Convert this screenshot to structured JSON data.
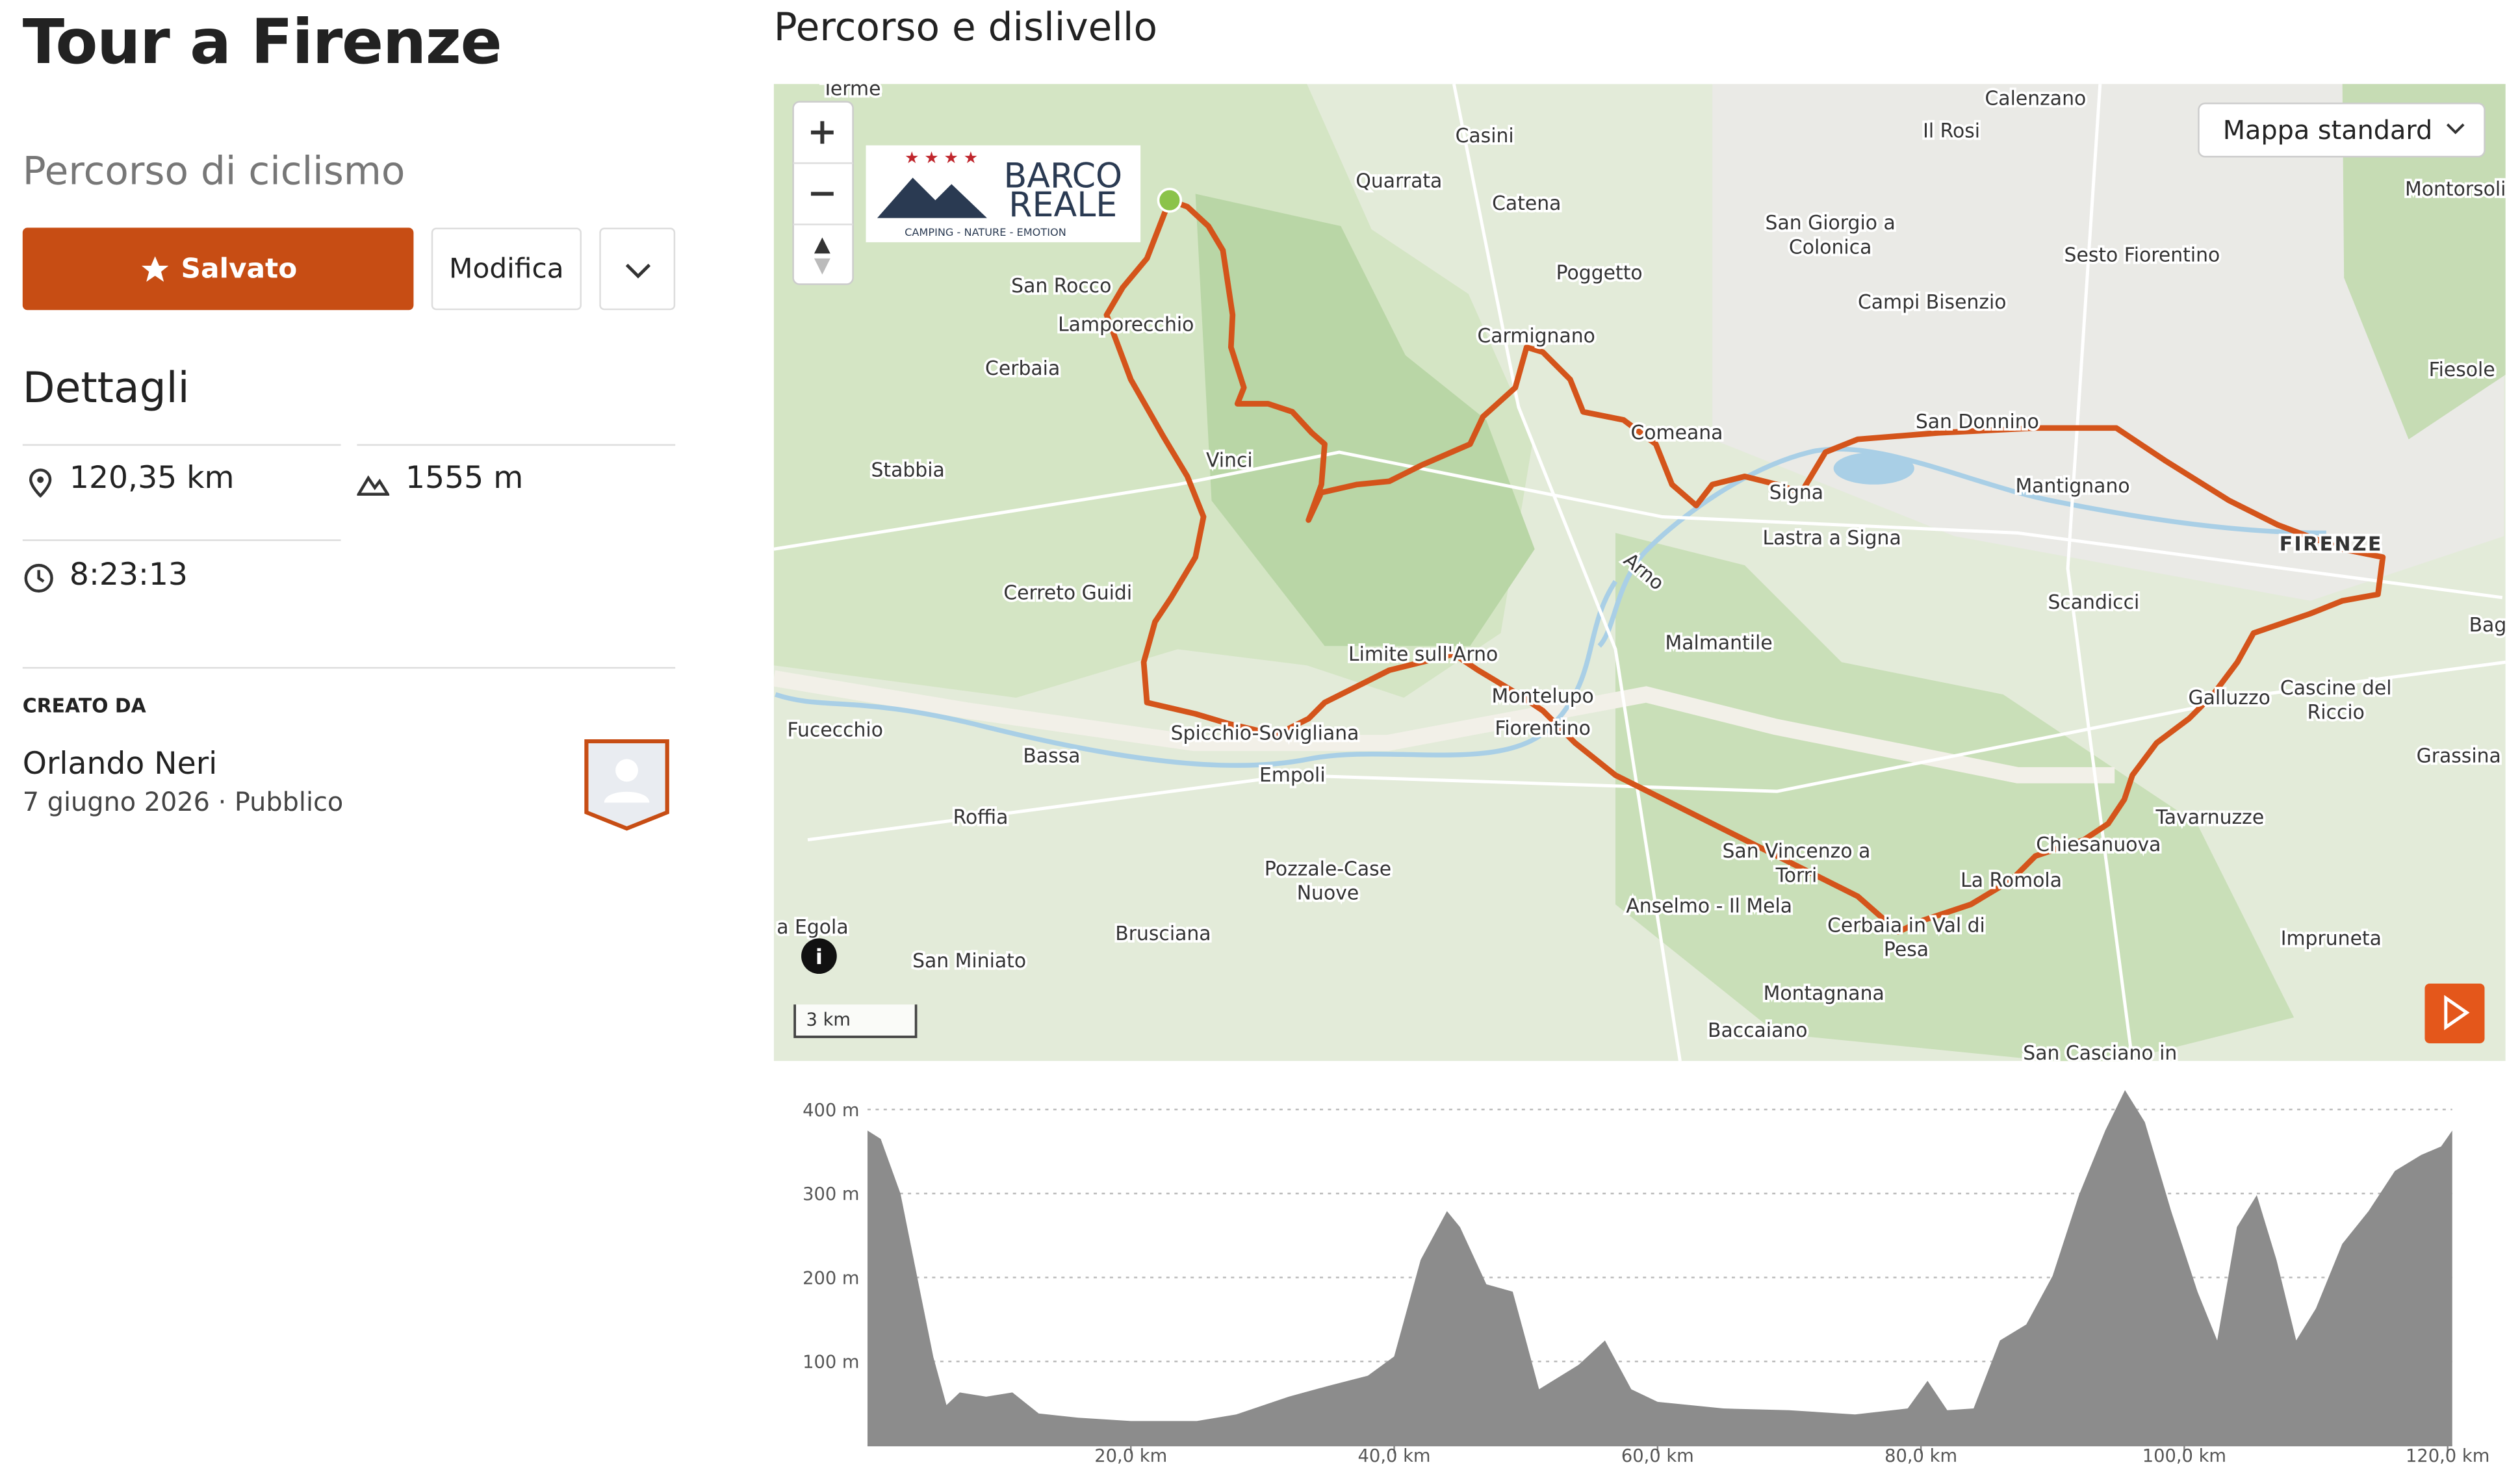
{
  "header": {
    "title": "Tour a Firenze",
    "subtitle": "Percorso di ciclismo"
  },
  "buttons": {
    "saved": "Salvato",
    "edit": "Modifica"
  },
  "details": {
    "heading": "Dettagli",
    "distance": "120,35 km",
    "elevation": "1555 m",
    "time": "8:23:13"
  },
  "creator": {
    "label": "CREATO DA",
    "name": "Orlando Neri",
    "date": "7 giugno 2026",
    "visibility": "Pubblico"
  },
  "section_title": "Percorso e dislivello",
  "map": {
    "style": "Mappa standard",
    "scale": "3 km",
    "logo": {
      "line1": "BARCO",
      "line2": "REALE",
      "tagline": "CAMPING - NATURE - EMOTION"
    },
    "places": [
      "Terme",
      "Quarrata",
      "Casini",
      "Catena",
      "Calenzano",
      "Il Rosi",
      "San Giorgio a",
      "Colonica",
      "Sesto Fiorentino",
      "Campi Bisenzio",
      "Poggetto",
      "Carmignano",
      "San Rocco",
      "Lamporecchio",
      "Cerbaia",
      "Stabbia",
      "Vinci",
      "Comeana",
      "San Donnino",
      "Signa",
      "Lastra a Signa",
      "Mantignano",
      "FIRENZE",
      "Fiesole",
      "Scandicci",
      "Cerreto Guidi",
      "Malmantile",
      "Arno",
      "Limite sull'Arno",
      "Montelupo",
      "Fiorentino",
      "Galluzzo",
      "Cascine del",
      "Riccio",
      "Bag",
      "Fucecchio",
      "Bassa",
      "Spicchio-Sovigliana",
      "Empoli",
      "Grassina",
      "Roffia",
      "Tavarnuzze",
      "Chiesanuova",
      "San Vincenzo a",
      "Torri",
      "La Romola",
      "Pozzale-Case",
      "Nuove",
      "Anselmo - Il Mela",
      "Cerbaia in Val di",
      "Pesa",
      "Brusciana",
      "Impruneta",
      "San Miniato",
      "Montagnana",
      "Baccaiano",
      "San Casciano in",
      "Montorsoli",
      "a Egola"
    ]
  },
  "chart_data": {
    "type": "area",
    "color": "#8c8c8c",
    "x": [
      0,
      1,
      2.5,
      4,
      5,
      6,
      7,
      9,
      11,
      13,
      16,
      20,
      25,
      28,
      32,
      35,
      38,
      40,
      42,
      44,
      45,
      47,
      49,
      50,
      51,
      54,
      56,
      58,
      60,
      65,
      70,
      75,
      79,
      80.5,
      82,
      84,
      86,
      88,
      90,
      92,
      94,
      95.5,
      97,
      99,
      101,
      102.5,
      104,
      105.5,
      107,
      108.5,
      110,
      112,
      114,
      116,
      118,
      119.5,
      120.35
    ],
    "values": [
      375,
      365,
      300,
      183,
      105,
      48,
      63,
      58,
      63,
      38,
      33,
      29,
      29,
      37,
      58,
      71,
      83,
      106,
      221,
      279,
      260,
      192,
      183,
      125,
      67,
      96,
      125,
      67,
      52,
      44,
      42,
      37,
      44,
      77,
      42,
      44,
      125,
      144,
      202,
      298,
      375,
      423,
      385,
      279,
      183,
      125,
      260,
      298,
      221,
      125,
      163,
      240,
      279,
      327,
      346,
      356,
      375
    ],
    "xlim": [
      0,
      120.35
    ],
    "ylim": [
      0,
      400
    ],
    "xticks": [
      {
        "value": 20,
        "label": "20,0 km"
      },
      {
        "value": 40,
        "label": "40,0 km"
      },
      {
        "value": 60,
        "label": "60,0 km"
      },
      {
        "value": 80,
        "label": "80,0 km"
      },
      {
        "value": 100,
        "label": "100,0 km"
      },
      {
        "value": 120,
        "label": "120,0 km"
      }
    ],
    "yticks": [
      {
        "value": 100,
        "label": "100 m"
      },
      {
        "value": 200,
        "label": "200 m"
      },
      {
        "value": 300,
        "label": "300 m"
      },
      {
        "value": 400,
        "label": "400 m"
      }
    ],
    "grid": true
  }
}
